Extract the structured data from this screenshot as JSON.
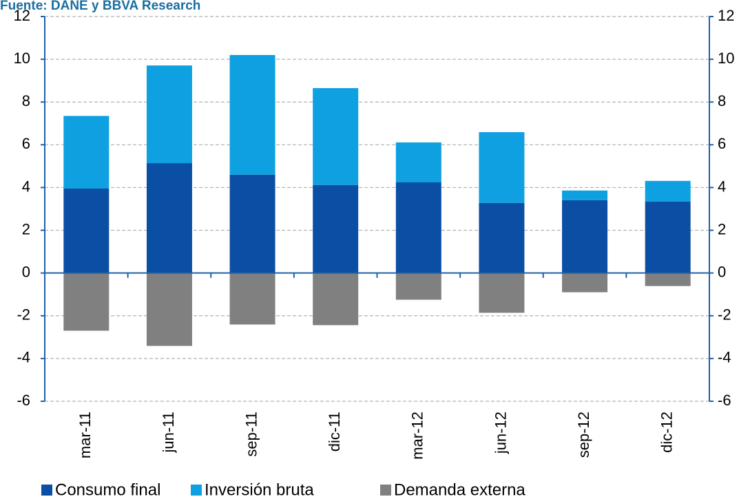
{
  "chart_data": {
    "type": "stacked-bar",
    "source": "Fuente: DANE y BBVA Research",
    "categories": [
      "mar-11",
      "jun-11",
      "sep-11",
      "dic-11",
      "mar-12",
      "jun-12",
      "sep-12",
      "dic-12"
    ],
    "series": [
      {
        "name": "Consumo final",
        "color": "#0a4fa3",
        "values": [
          3.95,
          5.14,
          4.6,
          4.12,
          4.24,
          3.28,
          3.41,
          3.34
        ]
      },
      {
        "name": "Inversión bruta",
        "color": "#0ea0e0",
        "values": [
          3.4,
          4.57,
          5.6,
          4.53,
          1.87,
          3.31,
          0.45,
          0.97
        ]
      },
      {
        "name": "Demanda externa",
        "color": "#808080",
        "values": [
          -2.7,
          -3.41,
          -2.41,
          -2.44,
          -1.25,
          -1.86,
          -0.9,
          -0.61
        ]
      }
    ],
    "ylim": [
      -6,
      12
    ],
    "yticks": [
      -6,
      -4,
      -2,
      0,
      2,
      4,
      6,
      8,
      10,
      12
    ],
    "y2lim": [
      -6,
      12
    ],
    "y2ticks": [
      -6,
      -4,
      -2,
      0,
      2,
      4,
      6,
      8,
      10,
      12
    ],
    "grid": true
  }
}
